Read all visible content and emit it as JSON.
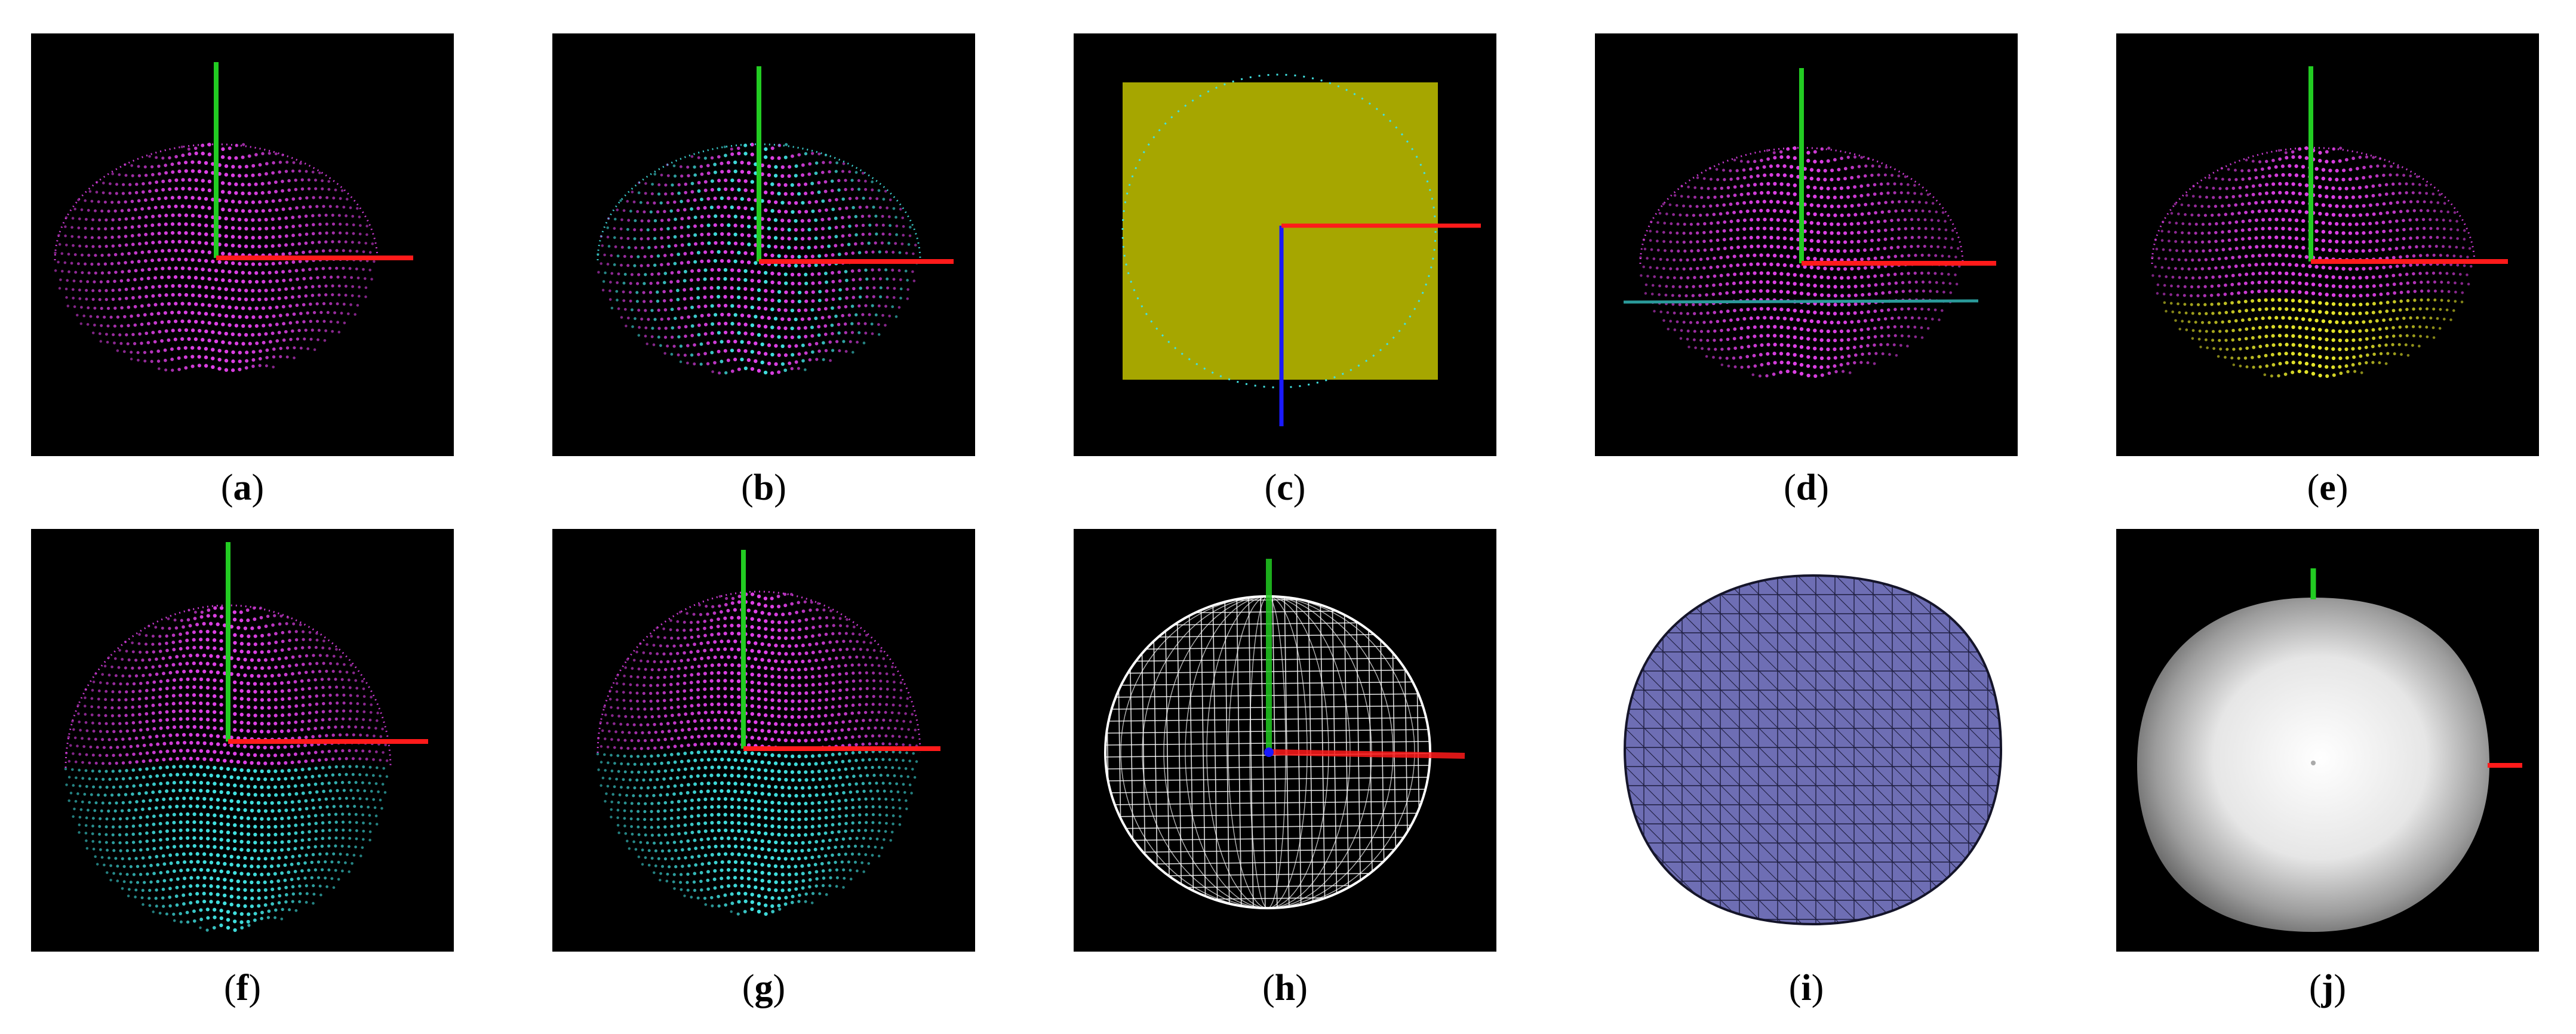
{
  "figure": {
    "panels": [
      {
        "id": "a",
        "caption_open": "(",
        "letter": "a",
        "caption_close": ")",
        "render": "dome-cloud"
      },
      {
        "id": "b",
        "caption_open": "(",
        "letter": "b",
        "caption_close": ")",
        "render": "dome-cloud-mixed"
      },
      {
        "id": "c",
        "caption_open": "(",
        "letter": "c",
        "caption_close": ")",
        "render": "plane-square"
      },
      {
        "id": "d",
        "caption_open": "(",
        "letter": "d",
        "caption_close": ")",
        "render": "dome-cloud-cut-line"
      },
      {
        "id": "e",
        "caption_open": "(",
        "letter": "e",
        "caption_close": ")",
        "render": "dome-cloud-yellow-base"
      },
      {
        "id": "f",
        "caption_open": "(",
        "letter": "f",
        "caption_close": ")",
        "render": "sphere-cloud-mirrored"
      },
      {
        "id": "g",
        "caption_open": "(",
        "letter": "g",
        "caption_close": ")",
        "render": "sphere-cloud-mirrored"
      },
      {
        "id": "h",
        "caption_open": "(",
        "letter": "h",
        "caption_close": ")",
        "render": "wireframe-sphere"
      },
      {
        "id": "i",
        "caption_open": "(",
        "letter": "i",
        "caption_close": ")",
        "render": "triangle-mesh"
      },
      {
        "id": "j",
        "caption_open": "(",
        "letter": "j",
        "caption_close": ")",
        "render": "shaded-surface"
      }
    ],
    "colors": {
      "background": "#000000",
      "upper_points": "#e040e8",
      "lower_points": "#40e0e0",
      "yellow_points": "#e6e62a",
      "axis_x": "#ff1a1a",
      "axis_y": "#22cc22",
      "axis_z": "#1a1aff",
      "plane": "#a6a600",
      "mesh_fill": "#6e6eb4",
      "mesh_edge": "#1c1c3c"
    }
  }
}
